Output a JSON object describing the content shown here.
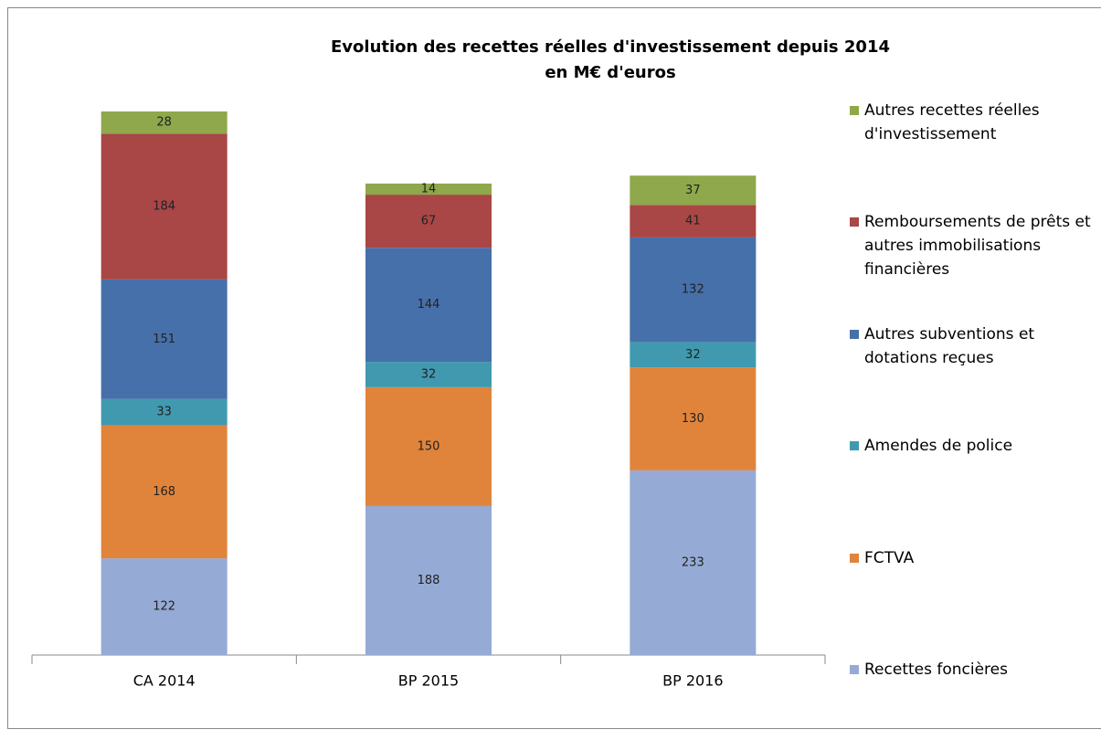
{
  "chart_data": {
    "type": "stacked_bar",
    "title": "Evolution des recettes réelles d'investissement depuis 2014\nen M€ d'euros",
    "categories": [
      "CA 2014",
      "BP 2015",
      "BP 2016"
    ],
    "series": [
      {
        "name": "Recettes foncières",
        "color": "#95abd5",
        "values": [
          122,
          188,
          233
        ]
      },
      {
        "name": "FCTVA",
        "color": "#e0843c",
        "values": [
          168,
          150,
          130
        ]
      },
      {
        "name": "Amendes de police",
        "color": "#4199b0",
        "values": [
          33,
          32,
          32
        ]
      },
      {
        "name": "Autres subventions et dotations reçues",
        "color": "#4670a9",
        "values": [
          151,
          144,
          132
        ]
      },
      {
        "name": "Remboursements de prêts et autres immobilisations financières",
        "color": "#a94646",
        "values": [
          184,
          67,
          41
        ]
      },
      {
        "name": "Autres recettes réelles d'investissement",
        "color": "#8ea84b",
        "values": [
          28,
          14,
          37
        ]
      }
    ],
    "legend": "right"
  }
}
